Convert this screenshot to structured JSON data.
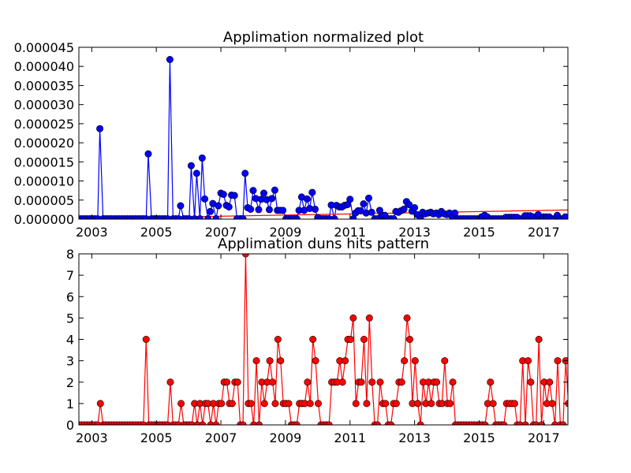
{
  "chart_data": [
    {
      "type": "line",
      "title": "Applimation normalized plot",
      "xlabel": "",
      "ylabel": "",
      "xlim": [
        2002.6,
        2017.75
      ],
      "ylim": [
        0,
        4.5e-05
      ],
      "xticks": [
        "2003",
        "2005",
        "2007",
        "2009",
        "2011",
        "2013",
        "2015",
        "2017"
      ],
      "yticks": [
        "0.000000",
        "0.000005",
        "0.000010",
        "0.000015",
        "0.000020",
        "0.000025",
        "0.000030",
        "0.000035",
        "0.000040",
        "0.000045"
      ],
      "grid": false,
      "series": [
        {
          "color": "#0000ff",
          "marker": "circle",
          "x": [
            2003.25,
            2004.75,
            2005.42,
            2005.75,
            2006.08,
            2006.25,
            2006.42,
            2006.5,
            2006.67,
            2006.75,
            2006.92,
            2007.0,
            2007.08,
            2007.17,
            2007.25,
            2007.33,
            2007.42,
            2007.5,
            2007.75,
            2007.83,
            2007.92,
            2008.0,
            2008.08,
            2008.17,
            2008.25,
            2008.33,
            2008.42,
            2008.5,
            2008.58,
            2008.67,
            2008.75,
            2008.83,
            2008.92,
            2009.42,
            2009.5,
            2009.58,
            2009.67,
            2009.75,
            2009.83,
            2009.92,
            2010.0,
            2010.42,
            2010.58,
            2010.67,
            2010.75,
            2010.83,
            2010.92,
            2011.0,
            2011.17,
            2011.25,
            2011.33,
            2011.42,
            2011.5,
            2011.58,
            2011.67,
            2011.92,
            2012.0,
            2012.08,
            2012.42,
            2012.5,
            2012.58,
            2012.67,
            2012.75,
            2012.83,
            2012.92,
            2013.0,
            2013.08,
            2013.25,
            2013.33,
            2013.42,
            2013.5,
            2013.58,
            2013.67,
            2013.75,
            2013.83,
            2013.92,
            2014.0,
            2014.08,
            2014.17,
            2014.25,
            2015.08,
            2015.17,
            2015.25,
            2015.83,
            2015.92,
            2016.0,
            2016.08,
            2016.17,
            2016.42,
            2016.5,
            2016.58,
            2016.67,
            2016.83,
            2017.0,
            2017.08,
            2017.17,
            2017.42,
            2017.67,
            2017.75
          ],
          "y": [
            2.37e-05,
            1.71e-05,
            4.18e-05,
            3.5e-06,
            1.4e-05,
            1.2e-05,
            1.6e-05,
            5.3e-06,
            2e-06,
            4.1e-06,
            3.5e-06,
            6.8e-06,
            6.5e-06,
            3.6e-06,
            3.2e-06,
            6.3e-06,
            6.2e-06,
            1e-07,
            1.2e-05,
            3e-06,
            2.6e-06,
            7.5e-06,
            5.4e-06,
            2.5e-06,
            5.2e-06,
            6.8e-06,
            5.1e-06,
            2.5e-06,
            5.4e-06,
            7.6e-06,
            2.3e-06,
            2.3e-06,
            2.3e-06,
            2.3e-06,
            5.8e-06,
            2.3e-06,
            5.3e-06,
            2.8e-06,
            7e-06,
            2.6e-06,
            4e-07,
            3.7e-06,
            3.6e-06,
            3.2e-06,
            3.2e-06,
            3.6e-06,
            3.8e-06,
            5.2e-06,
            1.6e-06,
            2.2e-06,
            2.2e-06,
            4e-06,
            1.6e-06,
            5.5e-06,
            1.8e-06,
            2.3e-06,
            1e-06,
            1e-06,
            2e-06,
            1.8e-06,
            2.2e-06,
            2.6e-06,
            4.6e-06,
            3.8e-06,
            2.1e-06,
            3e-06,
            1.2e-06,
            1.8e-06,
            1.4e-06,
            1.6e-06,
            1.8e-06,
            1.4e-06,
            1.6e-06,
            1.2e-06,
            2e-06,
            1.4e-06,
            1.2e-06,
            1.6e-06,
            6e-07,
            1.6e-06,
            6e-07,
            1e-06,
            6e-07,
            5e-07,
            5e-07,
            5e-07,
            5e-07,
            5e-07,
            9e-07,
            9e-07,
            9e-07,
            6e-07,
            1.2e-06,
            6e-07,
            6e-07,
            6e-07,
            1e-06,
            6e-07,
            9e-07
          ],
          "baseline": 1e-07,
          "monthly_start": 2002.6,
          "monthly_end": 2017.75
        }
      ],
      "trend_line": {
        "color": "#ff0000",
        "x": [
          2002.6,
          2017.75
        ],
        "y": [
          1e-07,
          2.4e-06
        ]
      }
    },
    {
      "type": "line",
      "title": "Applimation duns hits pattern",
      "xlabel": "",
      "ylabel": "",
      "xlim": [
        2002.6,
        2017.75
      ],
      "ylim": [
        0,
        8
      ],
      "xticks": [
        "2003",
        "2005",
        "2007",
        "2009",
        "2011",
        "2013",
        "2015",
        "2017"
      ],
      "yticks": [
        "0",
        "1",
        "2",
        "3",
        "4",
        "5",
        "6",
        "7",
        "8"
      ],
      "grid": false,
      "series": [
        {
          "color": "#ff0000",
          "marker": "circle",
          "start": 2002.6,
          "step_months": 1,
          "values": [
            0,
            0,
            0,
            0,
            0,
            0,
            0,
            0,
            1,
            0,
            0,
            0,
            0,
            0,
            0,
            0,
            0,
            0,
            0,
            0,
            0,
            0,
            0,
            0,
            0,
            4,
            0,
            0,
            0,
            0,
            0,
            0,
            0,
            0,
            2,
            0,
            0,
            0,
            1,
            0,
            0,
            0,
            0,
            1,
            0,
            1,
            0,
            1,
            1,
            0,
            1,
            0,
            1,
            1,
            2,
            2,
            1,
            1,
            2,
            2,
            0,
            0,
            8,
            1,
            1,
            0,
            3,
            0,
            2,
            1,
            2,
            3,
            2,
            1,
            4,
            3,
            1,
            1,
            1,
            0,
            0,
            0,
            1,
            1,
            1,
            2,
            1,
            4,
            3,
            1,
            0,
            0,
            0,
            0,
            2,
            2,
            2,
            3,
            2,
            3,
            4,
            4,
            5,
            1,
            2,
            2,
            4,
            1,
            5,
            2,
            0,
            0,
            2,
            1,
            1,
            0,
            0,
            1,
            1,
            2,
            2,
            3,
            5,
            4,
            1,
            3,
            1,
            0,
            2,
            1,
            2,
            1,
            2,
            2,
            1,
            1,
            3,
            1,
            1,
            2,
            0,
            0,
            0,
            0,
            0,
            0,
            0,
            0,
            0,
            0,
            0,
            0,
            1,
            2,
            1,
            0,
            0,
            0,
            0,
            1,
            1,
            1,
            1,
            0,
            0,
            3,
            0,
            3,
            2,
            0,
            0,
            4,
            0,
            2,
            1,
            2,
            1,
            0,
            3,
            0,
            0,
            3,
            1
          ]
        }
      ]
    }
  ]
}
